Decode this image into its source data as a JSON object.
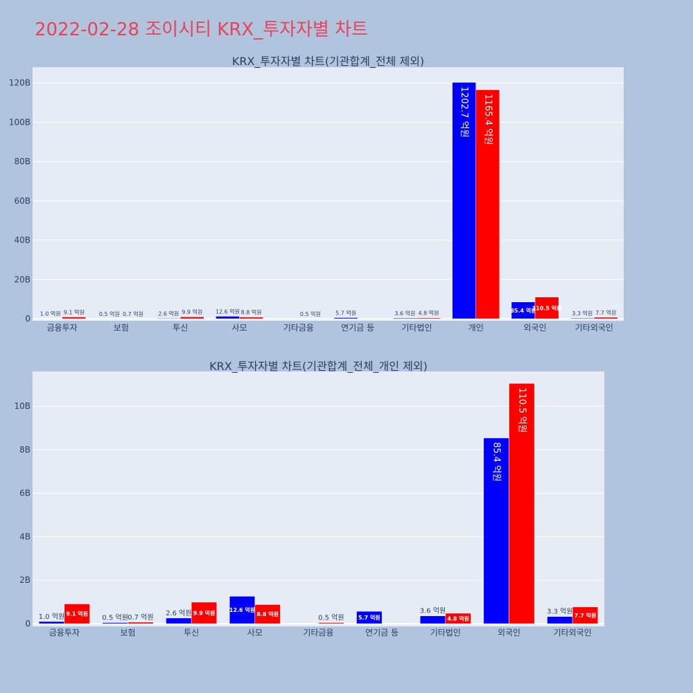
{
  "page": {
    "title": "2022-02-28 조이시티 KRX_투자자별 차트"
  },
  "colors": {
    "series_a": "#0000ff",
    "series_b": "#ff0000",
    "plot_bg": "#e5ecf6",
    "page_bg": "#b0c4de",
    "title": "#e8435a"
  },
  "chart_data": [
    {
      "type": "bar",
      "title": "KRX_투자자별 차트(기관합계_전체 제외)",
      "categories": [
        "금융투자",
        "보험",
        "투신",
        "사모",
        "기타금융",
        "연기금 등",
        "기타법인",
        "개인",
        "외국인",
        "기타외국인"
      ],
      "ylim": [
        0,
        128
      ],
      "yticks": [
        0,
        20,
        40,
        60,
        80,
        100,
        120
      ],
      "ytick_labels": [
        "0",
        "20B",
        "40B",
        "60B",
        "80B",
        "100B",
        "120B"
      ],
      "grid": true,
      "series": [
        {
          "color": "#0000ff",
          "values": [
            0.1,
            0.05,
            0.26,
            1.26,
            0,
            0.57,
            0.36,
            120.27,
            8.54,
            0.33
          ],
          "labels": [
            "1.0 억원",
            "0.5 억원",
            "2.6 억원",
            "12.6 억원",
            "",
            "5.7 억원",
            "3.6 억원",
            "1202.7 억원",
            "85.4 억원",
            "3.3 억원"
          ]
        },
        {
          "color": "#ff0000",
          "values": [
            0.91,
            0.07,
            0.99,
            0.88,
            0.05,
            0,
            0.48,
            116.54,
            11.05,
            0.77
          ],
          "labels": [
            "9.1 억원",
            "0.7 억원",
            "9.9 억원",
            "8.8 억원",
            "0.5 억원",
            "",
            "4.8 억원",
            "1165.4 억원",
            "110.5 억원",
            "7.7 억원"
          ]
        }
      ]
    },
    {
      "type": "bar",
      "title": "KRX_투자자별 차트(기관합계_전체_개인 제외)",
      "categories": [
        "금융투자",
        "보험",
        "투신",
        "사모",
        "기타금융",
        "연기금 등",
        "기타법인",
        "외국인",
        "기타외국인"
      ],
      "ylim": [
        0,
        11.6
      ],
      "yticks": [
        0,
        2,
        4,
        6,
        8,
        10
      ],
      "ytick_labels": [
        "0",
        "2B",
        "4B",
        "6B",
        "8B",
        "10B"
      ],
      "grid": true,
      "series": [
        {
          "color": "#0000ff",
          "values": [
            0.1,
            0.05,
            0.26,
            1.26,
            0,
            0.57,
            0.36,
            8.54,
            0.33
          ],
          "labels": [
            "1.0 억원",
            "0.5 억원",
            "2.6 억원",
            "12.6 억원",
            "",
            "5.7 억원",
            "3.6 억원",
            "85.4 억원",
            "3.3 억원"
          ]
        },
        {
          "color": "#ff0000",
          "values": [
            0.91,
            0.07,
            0.99,
            0.88,
            0.05,
            0,
            0.48,
            11.05,
            0.77
          ],
          "labels": [
            "9.1 억원",
            "0.7 억원",
            "9.9 억원",
            "8.8 억원",
            "0.5 억원",
            "",
            "4.8 억원",
            "110.5 억원",
            "7.7 억원"
          ]
        }
      ]
    }
  ]
}
